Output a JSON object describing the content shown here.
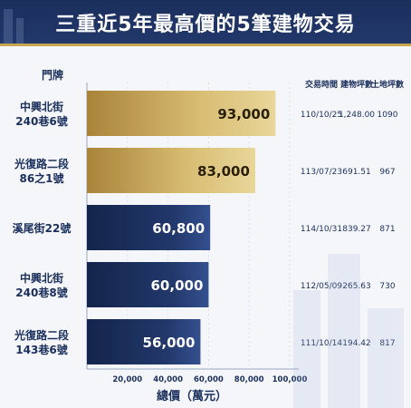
{
  "title": "三重近5年最高價的5筆建物交易",
  "colors": {
    "title_bg": "#1b2f5c",
    "accent_gold": "#c9a54d",
    "gold_bar": "#c8a658",
    "navy_bar": "#22386b"
  },
  "chart_data": {
    "type": "bar",
    "orientation": "horizontal",
    "ylabel": "門牌",
    "xlabel": "總價（萬元）",
    "xlim": [
      0,
      100000
    ],
    "xticks": [
      "20,000",
      "40,000",
      "60,000",
      "80,000",
      "100,000"
    ],
    "categories": [
      [
        "中興北街",
        "240巷6號"
      ],
      [
        "光復路二段",
        "86之1號"
      ],
      [
        "溪尾街22號"
      ],
      [
        "中興北街",
        "240巷8號"
      ],
      [
        "光復路二段",
        "143巷6號"
      ]
    ],
    "values": [
      93000,
      83000,
      60800,
      60000,
      56000
    ],
    "value_labels": [
      "93,000",
      "83,000",
      "60,800",
      "60,000",
      "56,000"
    ],
    "bar_styles": [
      "gold",
      "gold",
      "navy",
      "navy",
      "navy"
    ],
    "table": {
      "headers": [
        "交易時間",
        "建物坪數",
        "土地坪數"
      ],
      "rows": [
        [
          "110/10/25",
          "1,248.00",
          "1090"
        ],
        [
          "113/07/23",
          "691.51",
          "967"
        ],
        [
          "114/10/31",
          "839.27",
          "871"
        ],
        [
          "112/05/09",
          "265.63",
          "730"
        ],
        [
          "111/10/14",
          "194.42",
          "817"
        ]
      ]
    }
  }
}
